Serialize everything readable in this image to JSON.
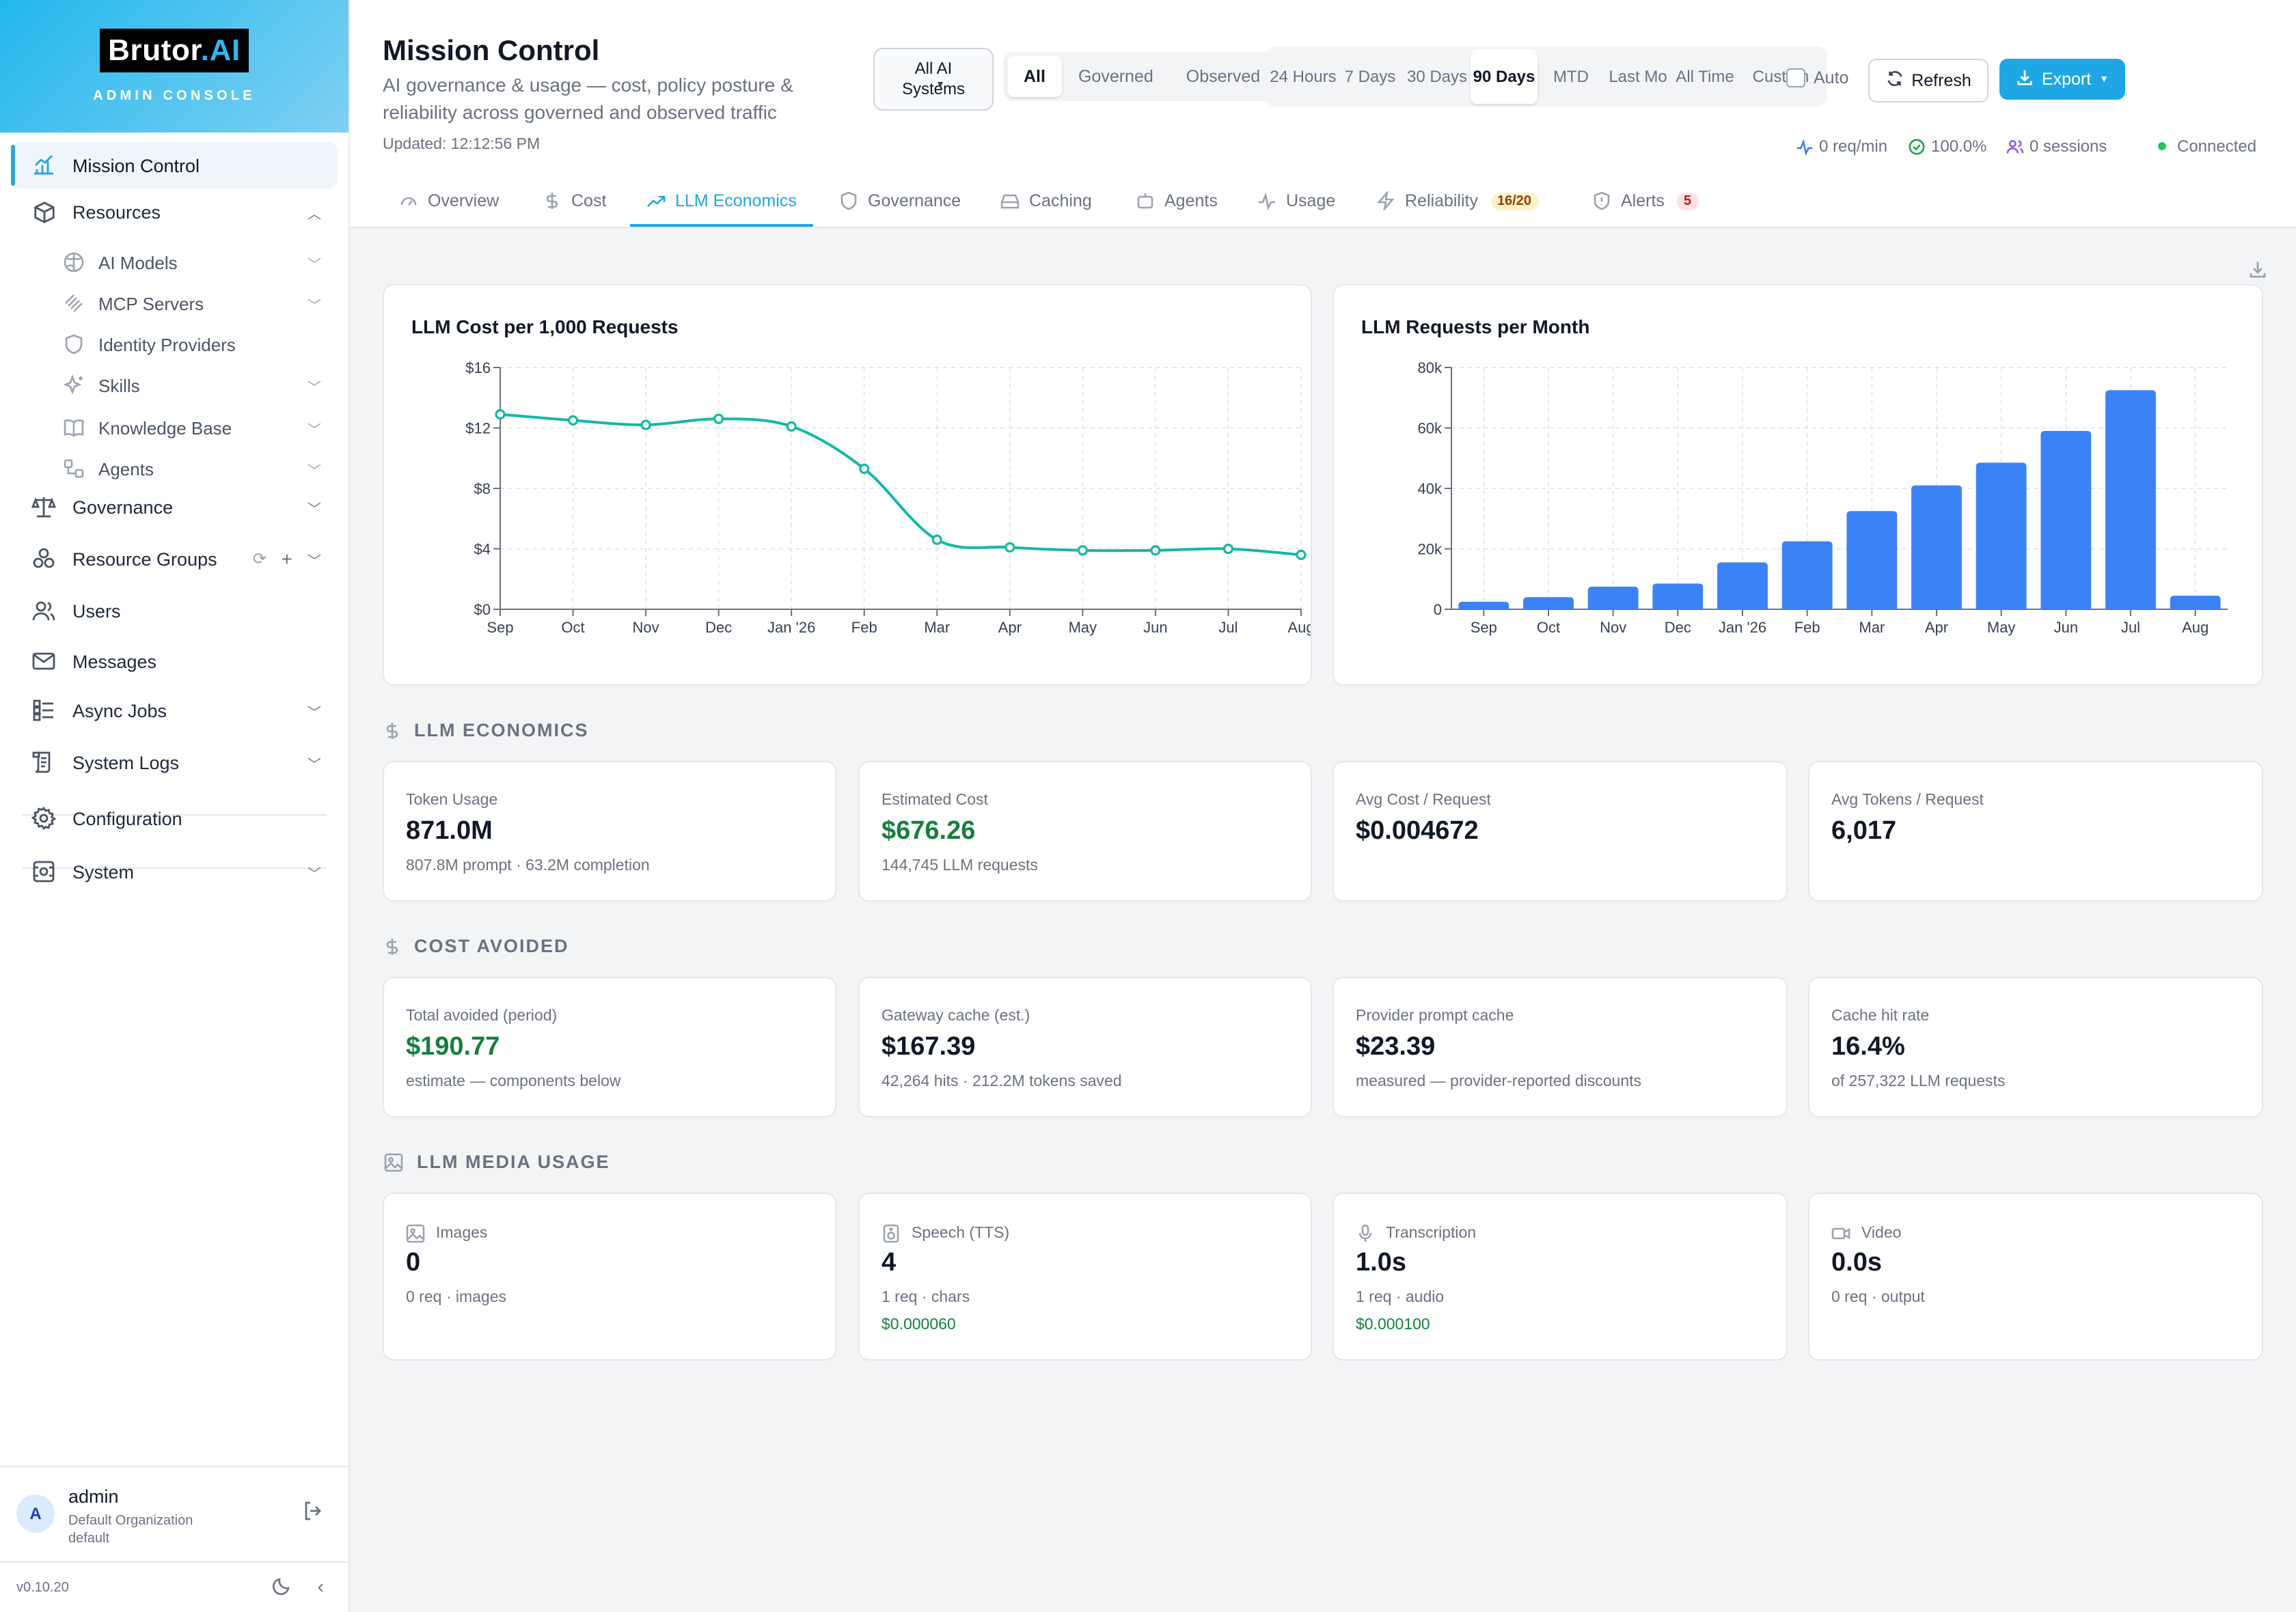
{
  "brand": {
    "name": "Brutor",
    "name_suffix": ".AI",
    "subtitle": "ADMIN CONSOLE"
  },
  "sidebar": {
    "items": [
      {
        "label": "Mission Control",
        "icon": "chart-icon",
        "active": true
      },
      {
        "label": "Resources",
        "icon": "cube-icon",
        "expanded": true
      },
      {
        "label": "Governance",
        "icon": "scale-icon"
      },
      {
        "label": "Resource Groups",
        "icon": "group-icon"
      },
      {
        "label": "Users",
        "icon": "users-icon"
      },
      {
        "label": "Messages",
        "icon": "mail-icon"
      },
      {
        "label": "Async Jobs",
        "icon": "jobs-icon"
      },
      {
        "label": "System Logs",
        "icon": "logs-icon"
      },
      {
        "label": "Configuration",
        "icon": "gear-icon"
      },
      {
        "label": "System",
        "icon": "system-icon"
      }
    ],
    "resources": [
      {
        "label": "AI Models",
        "icon": "brain-icon"
      },
      {
        "label": "MCP Servers",
        "icon": "mcp-icon"
      },
      {
        "label": "Identity Providers",
        "icon": "shield-icon"
      },
      {
        "label": "Skills",
        "icon": "sparkle-icon"
      },
      {
        "label": "Knowledge Base",
        "icon": "book-icon"
      },
      {
        "label": "Agents",
        "icon": "agents-icon"
      }
    ],
    "user": {
      "initial": "A",
      "name": "admin",
      "org": "Default Organization",
      "tenant": "default"
    },
    "version": "v0.10.20"
  },
  "header": {
    "title": "Mission Control",
    "subtitle": "AI governance & usage — cost, policy posture & reliability across governed and observed traffic",
    "updated": "Updated: 12:12:56 PM",
    "system_select": "All AI Systems",
    "scope_options": [
      "All",
      "Governed",
      "Observed"
    ],
    "scope_selected": "All",
    "range_options": [
      "24 Hours",
      "7 Days",
      "30 Days",
      "90 Days",
      "MTD",
      "Last Mo",
      "All Time",
      "Custom"
    ],
    "range_selected": "90 Days",
    "auto_label": "Auto",
    "refresh_label": "Refresh",
    "export_label": "Export",
    "status": {
      "rate": "0 req/min",
      "success": "100.0%",
      "sessions": "0 sessions",
      "connection": "Connected"
    }
  },
  "tabs": [
    {
      "label": "Overview",
      "icon": "gauge-icon"
    },
    {
      "label": "Cost",
      "icon": "dollar-icon"
    },
    {
      "label": "LLM Economics",
      "icon": "trend-icon",
      "active": true
    },
    {
      "label": "Governance",
      "icon": "shield-icon"
    },
    {
      "label": "Caching",
      "icon": "drive-icon"
    },
    {
      "label": "Agents",
      "icon": "bot-icon"
    },
    {
      "label": "Usage",
      "icon": "pulse-icon"
    },
    {
      "label": "Reliability",
      "icon": "bolt-icon",
      "badge": "16/20"
    },
    {
      "label": "Alerts",
      "icon": "alert-shield-icon",
      "badge": "5"
    }
  ],
  "chart_data": [
    {
      "type": "line",
      "title": "LLM Cost per 1,000 Requests",
      "categories": [
        "Sep",
        "Oct",
        "Nov",
        "Dec",
        "Jan '26",
        "Feb",
        "Mar",
        "Apr",
        "May",
        "Jun",
        "Jul",
        "Aug"
      ],
      "values": [
        12.9,
        12.5,
        12.2,
        12.6,
        12.1,
        9.3,
        4.6,
        4.1,
        3.9,
        3.9,
        4.0,
        3.6
      ],
      "ylim": [
        0,
        16
      ],
      "yticks": [
        0,
        4,
        8,
        12,
        16
      ],
      "ytick_labels": [
        "$0",
        "$4",
        "$8",
        "$12",
        "$16"
      ],
      "color": "#14b8a6",
      "grid": true
    },
    {
      "type": "bar",
      "title": "LLM Requests per Month",
      "categories": [
        "Sep",
        "Oct",
        "Nov",
        "Dec",
        "Jan '26",
        "Feb",
        "Mar",
        "Apr",
        "May",
        "Jun",
        "Jul",
        "Aug"
      ],
      "values": [
        2500,
        4000,
        7500,
        8500,
        15500,
        22500,
        32500,
        41000,
        48500,
        59000,
        72500,
        4500
      ],
      "ylim": [
        0,
        80000
      ],
      "yticks": [
        0,
        20000,
        40000,
        60000,
        80000
      ],
      "ytick_labels": [
        "0",
        "20k",
        "40k",
        "60k",
        "80k"
      ],
      "color": "#3b82f6",
      "grid": true
    }
  ],
  "sections": {
    "economics": {
      "title": "LLM ECONOMICS",
      "cards": [
        {
          "label": "Token Usage",
          "value": "871.0M",
          "sub": "807.8M prompt · 63.2M completion"
        },
        {
          "label": "Estimated Cost",
          "value": "$676.26",
          "sub": "144,745 LLM requests",
          "green": true
        },
        {
          "label": "Avg Cost / Request",
          "value": "$0.004672",
          "sub": ""
        },
        {
          "label": "Avg Tokens / Request",
          "value": "6,017",
          "sub": ""
        }
      ]
    },
    "avoided": {
      "title": "COST AVOIDED",
      "cards": [
        {
          "label": "Total avoided (period)",
          "value": "$190.77",
          "sub": "estimate — components below",
          "green": true
        },
        {
          "label": "Gateway cache (est.)",
          "value": "$167.39",
          "sub": "42,264 hits · 212.2M tokens saved"
        },
        {
          "label": "Provider prompt cache",
          "value": "$23.39",
          "sub": "measured — provider-reported discounts"
        },
        {
          "label": "Cache hit rate",
          "value": "16.4%",
          "sub": "of 257,322 LLM requests"
        }
      ]
    },
    "media": {
      "title": "LLM MEDIA USAGE",
      "cards": [
        {
          "label": "Images",
          "icon": "image-icon",
          "value": "0",
          "sub": "0 req · images",
          "cost": ""
        },
        {
          "label": "Speech (TTS)",
          "icon": "speaker-icon",
          "value": "4",
          "sub": "1 req · chars",
          "cost": "$0.000060"
        },
        {
          "label": "Transcription",
          "icon": "mic-icon",
          "value": "1.0s",
          "sub": "1 req · audio",
          "cost": "$0.000100"
        },
        {
          "label": "Video",
          "icon": "video-icon",
          "value": "0.0s",
          "sub": "0 req · output",
          "cost": ""
        }
      ]
    }
  }
}
